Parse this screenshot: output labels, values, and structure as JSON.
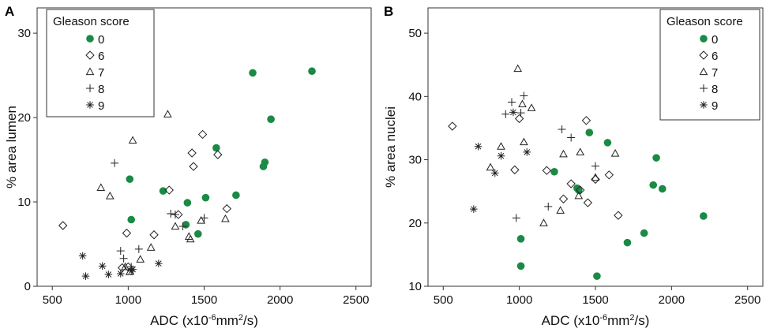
{
  "chart_data": [
    {
      "panel": "A",
      "type": "scatter",
      "xlabel_main": "ADC (x10",
      "xlabel_sup": "-6",
      "xlabel_mid": "mm",
      "xlabel_sup2": "2",
      "xlabel_end": "/s)",
      "ylabel": "% area lumen",
      "xlim": [
        400,
        2600
      ],
      "ylim": [
        0,
        33
      ],
      "xticks": [
        500,
        1000,
        1500,
        2000,
        2500
      ],
      "yticks": [
        0,
        10,
        20,
        30
      ],
      "legend": {
        "title": "Gleason score",
        "position": "top-left",
        "entries": [
          {
            "label": "0",
            "marker": "dot"
          },
          {
            "label": "6",
            "marker": "diamond"
          },
          {
            "label": "7",
            "marker": "triangle"
          },
          {
            "label": "8",
            "marker": "plus"
          },
          {
            "label": "9",
            "marker": "star"
          }
        ]
      },
      "series": [
        {
          "name": "0",
          "marker": "dot",
          "points": [
            [
              1010,
              12.7
            ],
            [
              1020,
              7.9
            ],
            [
              1230,
              11.3
            ],
            [
              1380,
              7.3
            ],
            [
              1390,
              9.9
            ],
            [
              1460,
              6.2
            ],
            [
              1510,
              10.5
            ],
            [
              1580,
              16.4
            ],
            [
              1710,
              10.8
            ],
            [
              1820,
              25.3
            ],
            [
              1890,
              14.2
            ],
            [
              1900,
              14.7
            ],
            [
              1940,
              19.8
            ],
            [
              2210,
              25.5
            ]
          ]
        },
        {
          "name": "6",
          "marker": "diamond",
          "points": [
            [
              570,
              7.2
            ],
            [
              990,
              6.3
            ],
            [
              1170,
              6.1
            ],
            [
              1270,
              11.4
            ],
            [
              1330,
              8.5
            ],
            [
              1420,
              15.8
            ],
            [
              1430,
              14.2
            ],
            [
              1490,
              18.0
            ],
            [
              1590,
              15.6
            ],
            [
              1650,
              9.2
            ],
            [
              960,
              2.2
            ],
            [
              1000,
              2.3
            ]
          ]
        },
        {
          "name": "7",
          "marker": "triangle",
          "points": [
            [
              820,
              11.7
            ],
            [
              880,
              10.7
            ],
            [
              1030,
              17.3
            ],
            [
              1260,
              20.4
            ],
            [
              1310,
              7.1
            ],
            [
              1400,
              5.9
            ],
            [
              1410,
              5.6
            ],
            [
              1480,
              7.8
            ],
            [
              1640,
              8.0
            ],
            [
              1150,
              4.6
            ],
            [
              1080,
              3.2
            ],
            [
              980,
              2.3
            ],
            [
              1010,
              1.7
            ]
          ]
        },
        {
          "name": "8",
          "marker": "plus",
          "points": [
            [
              910,
              14.6
            ],
            [
              950,
              4.2
            ],
            [
              970,
              3.3
            ],
            [
              1020,
              2.3
            ],
            [
              1070,
              4.4
            ],
            [
              1280,
              8.6
            ],
            [
              1310,
              8.5
            ],
            [
              1360,
              7.1
            ],
            [
              1500,
              8.1
            ]
          ]
        },
        {
          "name": "9",
          "marker": "star",
          "points": [
            [
              700,
              3.6
            ],
            [
              720,
              1.2
            ],
            [
              830,
              2.4
            ],
            [
              870,
              1.4
            ],
            [
              950,
              1.5
            ],
            [
              1020,
              1.8
            ],
            [
              1030,
              2.0
            ],
            [
              1200,
              2.7
            ]
          ]
        }
      ]
    },
    {
      "panel": "B",
      "type": "scatter",
      "xlabel_main": "ADC (x10",
      "xlabel_sup": "-6",
      "xlabel_mid": "mm",
      "xlabel_sup2": "2",
      "xlabel_end": "/s)",
      "ylabel": "% area nuclei",
      "xlim": [
        400,
        2600
      ],
      "ylim": [
        10,
        54
      ],
      "xticks": [
        500,
        1000,
        1500,
        2000,
        2500
      ],
      "yticks": [
        10,
        20,
        30,
        40,
        50
      ],
      "legend": {
        "title": "Gleason score",
        "position": "top-right",
        "entries": [
          {
            "label": "0",
            "marker": "dot"
          },
          {
            "label": "6",
            "marker": "diamond"
          },
          {
            "label": "7",
            "marker": "triangle"
          },
          {
            "label": "8",
            "marker": "plus"
          },
          {
            "label": "9",
            "marker": "star"
          }
        ]
      },
      "series": [
        {
          "name": "0",
          "marker": "dot",
          "points": [
            [
              1010,
              17.5
            ],
            [
              1010,
              13.2
            ],
            [
              1230,
              28.1
            ],
            [
              1380,
              25.5
            ],
            [
              1390,
              25.2
            ],
            [
              1460,
              34.3
            ],
            [
              1510,
              11.6
            ],
            [
              1580,
              32.7
            ],
            [
              1710,
              16.9
            ],
            [
              1820,
              18.4
            ],
            [
              1880,
              26.0
            ],
            [
              1900,
              30.3
            ],
            [
              1940,
              25.4
            ],
            [
              2210,
              21.1
            ]
          ]
        },
        {
          "name": "6",
          "marker": "diamond",
          "points": [
            [
              560,
              35.3
            ],
            [
              970,
              28.4
            ],
            [
              1000,
              36.5
            ],
            [
              1180,
              28.3
            ],
            [
              1290,
              23.8
            ],
            [
              1340,
              26.2
            ],
            [
              1400,
              25.2
            ],
            [
              1440,
              36.2
            ],
            [
              1450,
              23.2
            ],
            [
              1500,
              26.9
            ],
            [
              1590,
              27.6
            ],
            [
              1650,
              21.2
            ]
          ]
        },
        {
          "name": "7",
          "marker": "triangle",
          "points": [
            [
              810,
              28.8
            ],
            [
              880,
              32.1
            ],
            [
              990,
              44.4
            ],
            [
              1020,
              38.8
            ],
            [
              1030,
              32.8
            ],
            [
              1080,
              38.2
            ],
            [
              1160,
              20.0
            ],
            [
              1270,
              22.0
            ],
            [
              1290,
              30.9
            ],
            [
              1390,
              24.3
            ],
            [
              1400,
              31.2
            ],
            [
              1500,
              27.2
            ],
            [
              1630,
              31.0
            ]
          ]
        },
        {
          "name": "8",
          "marker": "plus",
          "points": [
            [
              910,
              37.2
            ],
            [
              950,
              39.1
            ],
            [
              980,
              20.8
            ],
            [
              1010,
              37.4
            ],
            [
              1030,
              40.1
            ],
            [
              1190,
              22.6
            ],
            [
              1280,
              34.8
            ],
            [
              1340,
              33.5
            ],
            [
              1500,
              29.0
            ]
          ]
        },
        {
          "name": "9",
          "marker": "star",
          "points": [
            [
              700,
              22.2
            ],
            [
              730,
              32.1
            ],
            [
              840,
              27.9
            ],
            [
              880,
              30.6
            ],
            [
              1050,
              31.2
            ],
            [
              960,
              37.5
            ]
          ]
        }
      ]
    }
  ]
}
